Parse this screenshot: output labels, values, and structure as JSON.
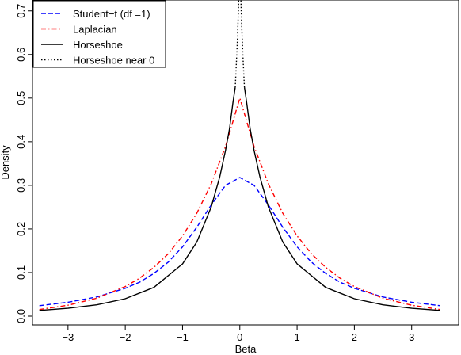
{
  "chart_data": {
    "type": "line",
    "title": "",
    "xlabel": "Beta",
    "ylabel": "Density",
    "xlim": [
      -3.62,
      3.82
    ],
    "ylim": [
      -0.02,
      0.725
    ],
    "x_ticks": [
      -3,
      -2,
      -1,
      0,
      1,
      2,
      3
    ],
    "x_tick_labels": [
      "−3",
      "−2",
      "−1",
      "0",
      "1",
      "2",
      "3"
    ],
    "y_ticks": [
      0.0,
      0.1,
      0.2,
      0.3,
      0.4,
      0.5,
      0.6,
      0.7
    ],
    "y_tick_labels": [
      "0.0",
      "0.1",
      "0.2",
      "0.3",
      "0.4",
      "0.5",
      "0.6",
      "0.7"
    ],
    "grid": false,
    "legend_position": "top-left",
    "series": [
      {
        "name": "Student−t (df =1)",
        "color": "#0000ff",
        "dash": "dashed",
        "x": [
          -3.5,
          -3.0,
          -2.5,
          -2.0,
          -1.75,
          -1.5,
          -1.25,
          -1.0,
          -0.75,
          -0.5,
          -0.25,
          0.0,
          0.25,
          0.5,
          0.75,
          1.0,
          1.25,
          1.5,
          1.75,
          2.0,
          2.5,
          3.0,
          3.5
        ],
        "y": [
          0.024,
          0.032,
          0.044,
          0.064,
          0.078,
          0.098,
          0.124,
          0.159,
          0.204,
          0.255,
          0.3,
          0.318,
          0.3,
          0.255,
          0.204,
          0.159,
          0.124,
          0.098,
          0.078,
          0.064,
          0.044,
          0.032,
          0.024
        ]
      },
      {
        "name": "Laplacian",
        "color": "#ff0000",
        "dash": "dashdot",
        "x": [
          -3.5,
          -3.0,
          -2.5,
          -2.0,
          -1.75,
          -1.5,
          -1.25,
          -1.0,
          -0.75,
          -0.5,
          -0.25,
          0.0,
          0.25,
          0.5,
          0.75,
          1.0,
          1.25,
          1.5,
          1.75,
          2.0,
          2.5,
          3.0,
          3.5
        ],
        "y": [
          0.015,
          0.025,
          0.041,
          0.068,
          0.087,
          0.112,
          0.143,
          0.184,
          0.236,
          0.303,
          0.389,
          0.5,
          0.389,
          0.303,
          0.236,
          0.184,
          0.143,
          0.112,
          0.087,
          0.068,
          0.041,
          0.025,
          0.015
        ]
      },
      {
        "name": "Horseshoe",
        "color": "#000000",
        "dash": "solid",
        "x": [
          -3.5,
          -3.0,
          -2.5,
          -2.0,
          -1.5,
          -1.0,
          -0.75,
          -0.5,
          -0.35,
          -0.25,
          -0.18,
          -0.12,
          -0.08
        ],
        "y": [
          0.013,
          0.018,
          0.026,
          0.04,
          0.066,
          0.12,
          0.17,
          0.25,
          0.32,
          0.38,
          0.43,
          0.49,
          0.525
        ]
      },
      {
        "name": "",
        "color": "#000000",
        "dash": "solid",
        "x": [
          0.08,
          0.12,
          0.18,
          0.25,
          0.35,
          0.5,
          0.75,
          1.0,
          1.5,
          2.0,
          2.5,
          3.0,
          3.5
        ],
        "y": [
          0.525,
          0.49,
          0.43,
          0.38,
          0.32,
          0.25,
          0.17,
          0.12,
          0.066,
          0.04,
          0.026,
          0.018,
          0.013
        ]
      },
      {
        "name": "Horseshoe near 0",
        "color": "#000000",
        "dash": "dotted",
        "x": [
          -0.08,
          -0.06,
          -0.04,
          -0.03,
          -0.02,
          -0.015
        ],
        "y": [
          0.525,
          0.58,
          0.64,
          0.68,
          0.72,
          0.74
        ]
      },
      {
        "name": "",
        "color": "#000000",
        "dash": "dotted",
        "x": [
          0.08,
          0.06,
          0.04,
          0.03,
          0.02,
          0.015
        ],
        "y": [
          0.525,
          0.58,
          0.64,
          0.68,
          0.72,
          0.74
        ]
      }
    ]
  }
}
